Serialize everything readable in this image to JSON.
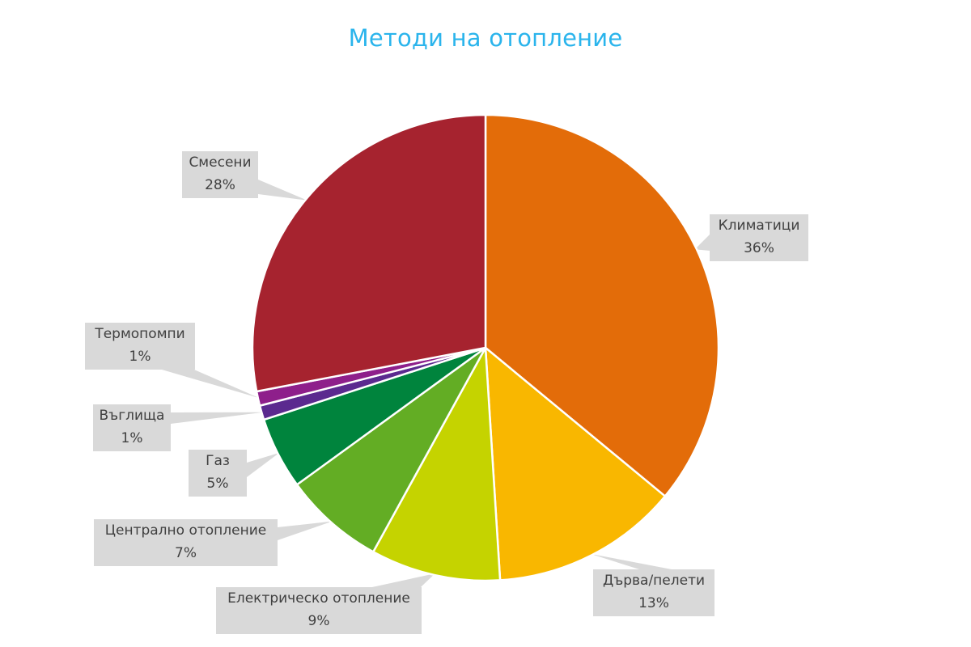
{
  "chart_data": {
    "type": "pie",
    "title": "Методи на отопление",
    "start_angle_deg": 0,
    "direction": "clockwise",
    "show_legend": false,
    "data_labels": "category and percentage, callout boxes",
    "slices": [
      {
        "label": "Климатици",
        "value": 36,
        "display": "36%",
        "color": "#e36c09"
      },
      {
        "label": "Дърва/пелети",
        "value": 13,
        "display": "13%",
        "color": "#f9b700"
      },
      {
        "label": "Електрическо отопление",
        "value": 9,
        "display": "9%",
        "color": "#c5d300"
      },
      {
        "label": "Централно отопление",
        "value": 7,
        "display": "7%",
        "color": "#63ad24"
      },
      {
        "label": "Газ",
        "value": 5,
        "display": "5%",
        "color": "#00843d"
      },
      {
        "label": "Въглища",
        "value": 1,
        "display": "1%",
        "color": "#5b2a8f"
      },
      {
        "label": "Термопомпи",
        "value": 1,
        "display": "1%",
        "color": "#8e1f8b"
      },
      {
        "label": "Смесени",
        "value": 28,
        "display": "28%",
        "color": "#a6232f"
      }
    ]
  },
  "title": "Методи на отопление",
  "labels": {
    "klimatici": {
      "name": "Климатици",
      "pct": "36%"
    },
    "darva": {
      "name": "Дърва/пелети",
      "pct": "13%"
    },
    "elektricheskо": {
      "name": "Електрическо отопление",
      "pct": "9%"
    },
    "centralno": {
      "name": "Централно отопление",
      "pct": "7%"
    },
    "gaz": {
      "name": "Газ",
      "pct": "5%"
    },
    "vaglishta": {
      "name": "Въглища",
      "pct": "1%"
    },
    "termopompi": {
      "name": "Термопомпи",
      "pct": "1%"
    },
    "meseni": {
      "name": "Смесени",
      "pct": "28%"
    }
  },
  "colors": {
    "title": "#2ab4ec",
    "label_bg": "#d9d9d9",
    "label_text": "#404040"
  }
}
